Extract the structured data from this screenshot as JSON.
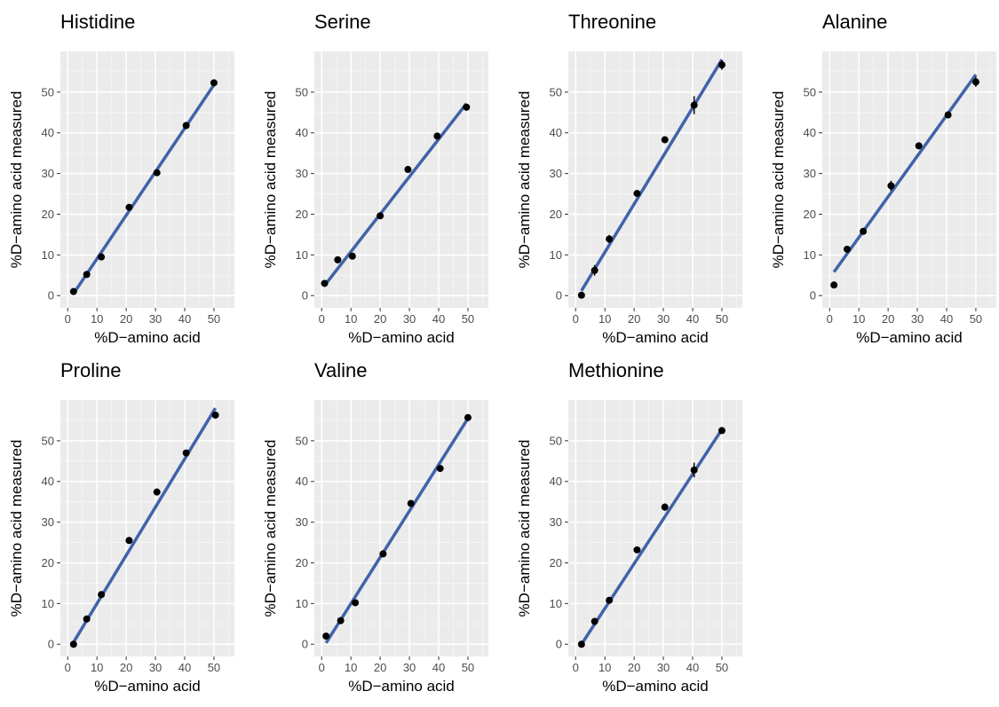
{
  "chart_data": [
    {
      "type": "scatter",
      "title": "Histidine",
      "xlabel": "%D−amino acid",
      "ylabel": "%D−amino acid measured",
      "xlim": [
        -2.5,
        57
      ],
      "ylim": [
        -3,
        60
      ],
      "xticks": [
        "0",
        "10",
        "20",
        "30",
        "40",
        "50"
      ],
      "yticks": [
        "0",
        "10",
        "20",
        "30",
        "40",
        "50"
      ],
      "x": [
        2,
        6.5,
        11.5,
        21,
        30.5,
        40.5,
        50
      ],
      "y": [
        1,
        5.2,
        9.5,
        21.7,
        30.2,
        41.8,
        52.3
      ],
      "err": [
        0,
        0,
        0,
        0,
        0.8,
        0.8,
        0
      ],
      "fit": {
        "x": [
          2,
          50
        ],
        "y": [
          0.5,
          51.8
        ],
        "color": "#4262a8"
      },
      "grid": true
    },
    {
      "type": "scatter",
      "title": "Serine",
      "xlabel": "%D−amino acid",
      "ylabel": "%D−amino acid measured",
      "xlim": [
        -2.5,
        57
      ],
      "ylim": [
        -3,
        60
      ],
      "xticks": [
        "0",
        "10",
        "20",
        "30",
        "40",
        "50"
      ],
      "yticks": [
        "0",
        "10",
        "20",
        "30",
        "40",
        "50"
      ],
      "x": [
        1,
        5.5,
        10.5,
        20,
        29.5,
        39.5,
        49.5
      ],
      "y": [
        3,
        8.8,
        9.7,
        19.6,
        31,
        39.2,
        46.3
      ],
      "err": [
        0,
        0,
        0,
        0,
        0,
        0,
        0
      ],
      "fit": {
        "x": [
          1,
          49.5
        ],
        "y": [
          2.5,
          47.2
        ],
        "color": "#4262a8"
      },
      "grid": true
    },
    {
      "type": "scatter",
      "title": "Threonine",
      "xlabel": "%D−amino acid",
      "ylabel": "%D−amino acid measured",
      "xlim": [
        -2.5,
        57
      ],
      "ylim": [
        -3,
        60
      ],
      "xticks": [
        "0",
        "10",
        "20",
        "30",
        "40",
        "50"
      ],
      "yticks": [
        "0",
        "10",
        "20",
        "30",
        "40",
        "50"
      ],
      "x": [
        2,
        6.5,
        11.5,
        21,
        30.5,
        40.5,
        50
      ],
      "y": [
        0.1,
        6.2,
        13.9,
        25.1,
        38.3,
        46.8,
        56.7
      ],
      "err": [
        0,
        1.3,
        1,
        0,
        0.8,
        2.2,
        1.2
      ],
      "fit": {
        "x": [
          2,
          50
        ],
        "y": [
          1.2,
          58
        ],
        "color": "#4262a8"
      },
      "grid": true
    },
    {
      "type": "scatter",
      "title": "Alanine",
      "xlabel": "%D−amino acid",
      "ylabel": "%D−amino acid measured",
      "xlim": [
        -2.5,
        57
      ],
      "ylim": [
        -3,
        60
      ],
      "xticks": [
        "0",
        "10",
        "20",
        "30",
        "40",
        "50"
      ],
      "yticks": [
        "0",
        "10",
        "20",
        "30",
        "40",
        "50"
      ],
      "x": [
        1.5,
        6,
        11.5,
        21,
        30.5,
        40.5,
        50
      ],
      "y": [
        2.6,
        11.4,
        15.8,
        27,
        36.8,
        44.4,
        52.5
      ],
      "err": [
        0,
        0,
        0,
        1.2,
        0.8,
        0,
        1.2
      ],
      "fit": {
        "x": [
          1.5,
          50
        ],
        "y": [
          5.8,
          54.3
        ],
        "color": "#4262a8"
      },
      "grid": true
    },
    {
      "type": "scatter",
      "title": "Proline",
      "xlabel": "%D−amino acid",
      "ylabel": "%D−amino acid measured",
      "xlim": [
        -2.5,
        57
      ],
      "ylim": [
        -3,
        60
      ],
      "xticks": [
        "0",
        "10",
        "20",
        "30",
        "40",
        "50"
      ],
      "yticks": [
        "0",
        "10",
        "20",
        "30",
        "40",
        "50"
      ],
      "x": [
        2,
        6.5,
        11.5,
        21,
        30.5,
        40.5,
        50.5
      ],
      "y": [
        0,
        6.2,
        12.2,
        25.5,
        37.4,
        47,
        56.3
      ],
      "err": [
        0,
        0,
        0,
        0,
        0,
        0,
        0
      ],
      "fit": {
        "x": [
          2,
          50.5
        ],
        "y": [
          0.5,
          58
        ],
        "color": "#4262a8"
      },
      "grid": true
    },
    {
      "type": "scatter",
      "title": "Valine",
      "xlabel": "%D−amino acid",
      "ylabel": "%D−amino acid measured",
      "xlim": [
        -2.5,
        57
      ],
      "ylim": [
        -3,
        60
      ],
      "xticks": [
        "0",
        "10",
        "20",
        "30",
        "40",
        "50"
      ],
      "yticks": [
        "0",
        "10",
        "20",
        "30",
        "40",
        "50"
      ],
      "x": [
        1.5,
        6.5,
        11.5,
        21,
        30.5,
        40.5,
        50
      ],
      "y": [
        2,
        5.8,
        10.2,
        22.2,
        34.6,
        43.2,
        55.7
      ],
      "err": [
        0,
        0,
        0,
        0,
        0,
        0,
        0
      ],
      "fit": {
        "x": [
          1.5,
          50
        ],
        "y": [
          0.3,
          55.5
        ],
        "color": "#4262a8"
      },
      "grid": true
    },
    {
      "type": "scatter",
      "title": "Methionine",
      "xlabel": "%D−amino acid",
      "ylabel": "%D−amino acid measured",
      "xlim": [
        -2.5,
        57
      ],
      "ylim": [
        -3,
        60
      ],
      "xticks": [
        "0",
        "10",
        "20",
        "30",
        "40",
        "50"
      ],
      "yticks": [
        "0",
        "10",
        "20",
        "30",
        "40",
        "50"
      ],
      "x": [
        2,
        6.5,
        11.5,
        21,
        30.5,
        40.5,
        50
      ],
      "y": [
        0,
        5.6,
        10.8,
        23.2,
        33.7,
        42.8,
        52.5
      ],
      "err": [
        0,
        0,
        0,
        0,
        0.9,
        1.8,
        0
      ],
      "fit": {
        "x": [
          2,
          50
        ],
        "y": [
          0,
          52.8
        ],
        "color": "#4262a8"
      },
      "grid": true
    }
  ]
}
